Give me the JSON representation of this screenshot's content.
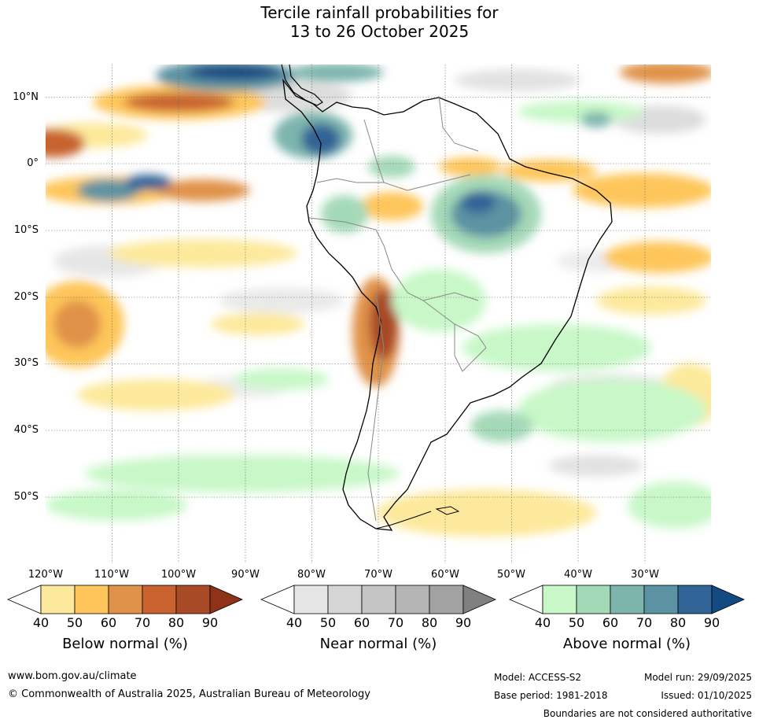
{
  "title": {
    "line1": "Tercile rainfall probabilities for",
    "line2": "13 to 26 October 2025"
  },
  "axes": {
    "lat_labels": [
      "10°N",
      "0°",
      "10°S",
      "20°S",
      "30°S",
      "40°S",
      "50°S"
    ],
    "lon_labels": [
      "120°W",
      "110°W",
      "100°W",
      "90°W",
      "80°W",
      "70°W",
      "60°W",
      "50°W",
      "40°W",
      "30°W"
    ]
  },
  "colorbars": [
    {
      "label": "Below normal (%)",
      "ticks": [
        "40",
        "50",
        "60",
        "70",
        "80",
        "90"
      ],
      "colors": [
        "#ffffff",
        "#fde99b",
        "#fec65a",
        "#e0924a",
        "#c8622f",
        "#a84a26",
        "#8e3317"
      ]
    },
    {
      "label": "Near normal (%)",
      "ticks": [
        "40",
        "50",
        "60",
        "70",
        "80",
        "90"
      ],
      "colors": [
        "#ffffff",
        "#e6e6e6",
        "#d5d5d5",
        "#c5c5c5",
        "#b4b4b4",
        "#a2a2a2",
        "#808080"
      ]
    },
    {
      "label": "Above normal (%)",
      "ticks": [
        "40",
        "50",
        "60",
        "70",
        "80",
        "90"
      ],
      "colors": [
        "#ffffff",
        "#c8f8c8",
        "#a4d9b8",
        "#7db5ad",
        "#5b93a3",
        "#316496",
        "#134a82"
      ]
    }
  ],
  "footer": {
    "website": "www.bom.gov.au/climate",
    "copyright": "© Commonwealth of Australia 2025, Australian Bureau of Meteorology",
    "model": "Model: ACCESS-S2",
    "model_run": "Model run: 29/09/2025",
    "base_period": "Base period: 1981-2018",
    "issued": "Issued: 01/10/2025",
    "disclaimer": "Boundaries are not considered authoritative"
  }
}
